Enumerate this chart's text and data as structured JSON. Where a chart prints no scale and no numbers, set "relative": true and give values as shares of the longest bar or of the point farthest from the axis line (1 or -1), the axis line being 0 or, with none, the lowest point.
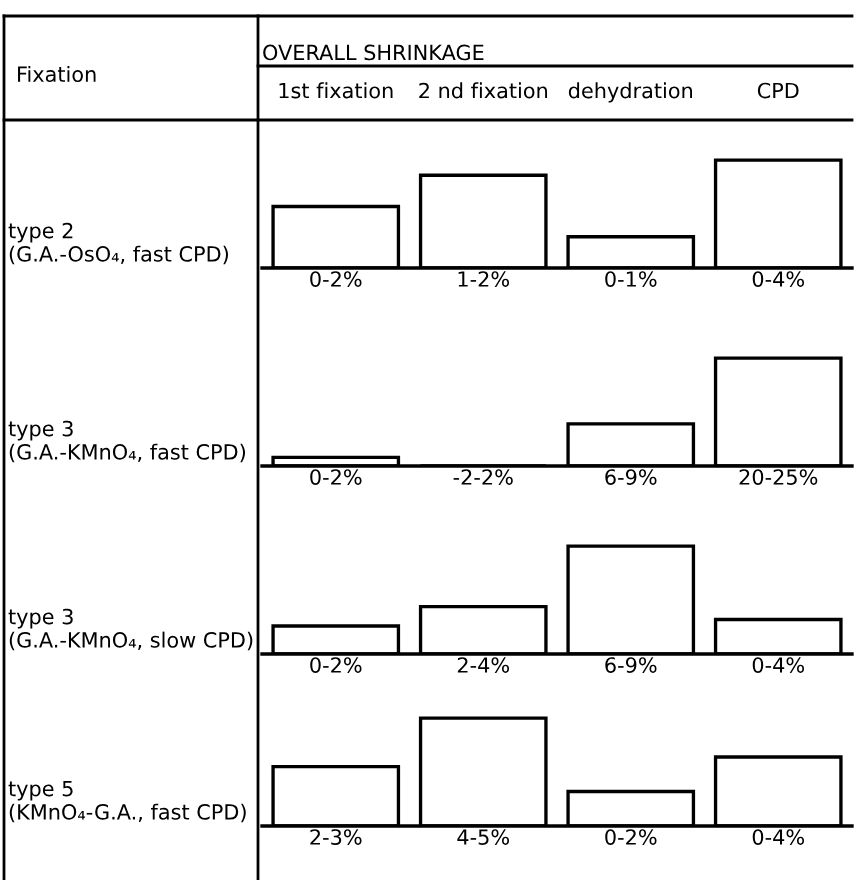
{
  "chart_data": [
    {
      "type": "bar",
      "title": "OVERALL SHRINKAGE",
      "ylabel": "type 2\n(G.A.-OsO₄, fast CPD)",
      "categories": [
        "1st fixation",
        "2 nd fixation",
        "dehydration",
        "CPD"
      ],
      "relative": true,
      "tick_labels": "x",
      "annotations": [
        "0-2%",
        "1-2%",
        "0-1%",
        "0-4%",
        "Fixation"
      ],
      "series": [
        {
          "color": "#ffffff",
          "values": [
            0.57,
            0.86,
            0.29,
            1
          ]
        }
      ]
    },
    {
      "type": "bar",
      "ylabel": "type 3\n(G.A.-KMnO₄, fast CPD)",
      "categories": [
        null,
        null,
        null,
        null
      ],
      "relative": true,
      "tick_labels": false,
      "annotations": [
        "0-2%",
        "-2-2%",
        "6-9%",
        "20-25%"
      ],
      "series": [
        {
          "color": "#ffffff",
          "values": [
            0.08,
            0,
            0.39,
            1
          ]
        }
      ]
    },
    {
      "type": "bar",
      "ylabel": "type 3\n(G.A.-KMnO₄, slow CPD)",
      "categories": [
        null,
        null,
        null,
        null
      ],
      "relative": true,
      "tick_labels": false,
      "annotations": [
        "0-2%",
        "2-4%",
        "6-9%",
        "0-4%"
      ],
      "series": [
        {
          "color": "#ffffff",
          "values": [
            0.26,
            0.44,
            1,
            0.32
          ]
        }
      ]
    },
    {
      "type": "bar",
      "ylabel": "type 5\n(KMnO₄-G.A., fast CPD)",
      "categories": [
        null,
        null,
        null,
        null
      ],
      "relative": true,
      "tick_labels": false,
      "annotations": [
        "2-3%",
        "4-5%",
        "0-2%",
        "0-4%"
      ],
      "series": [
        {
          "color": "#ffffff",
          "values": [
            0.55,
            1,
            0.32,
            0.64
          ]
        }
      ]
    }
  ]
}
